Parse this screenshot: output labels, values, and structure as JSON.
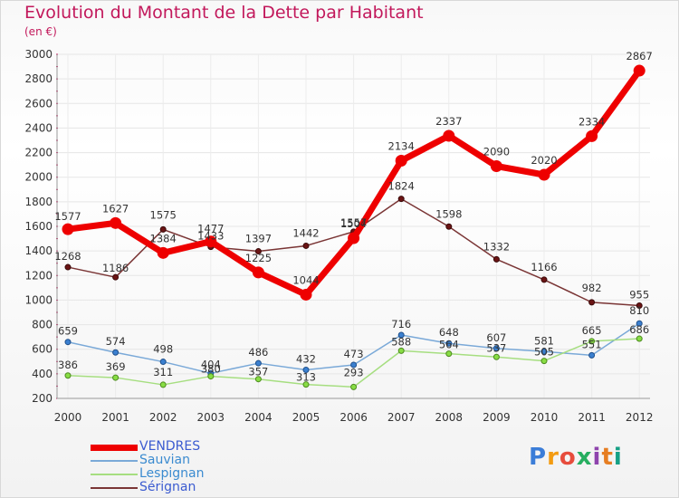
{
  "header": {
    "title": "Evolution du Montant de la Dette par Habitant",
    "subtitle": "(en €)"
  },
  "logo": {
    "text": "Proxiti",
    "colors": [
      "#3b7dd8",
      "#f39c12",
      "#e74c3c",
      "#27ae60",
      "#8e44ad",
      "#e67e22",
      "#16a085"
    ]
  },
  "chart_data": {
    "type": "line",
    "categories": [
      "2000",
      "2001",
      "2002",
      "2003",
      "2004",
      "2005",
      "2006",
      "2007",
      "2008",
      "2009",
      "2010",
      "2011",
      "2012"
    ],
    "ylim": [
      200,
      3000
    ],
    "yticks": [
      200,
      400,
      600,
      800,
      1000,
      1200,
      1400,
      1600,
      1800,
      2000,
      2200,
      2400,
      2600,
      2800,
      3000
    ],
    "grid": true,
    "legend_position": "bottom-left",
    "series": [
      {
        "name": "VENDRES",
        "color": "#ee0000",
        "values": [
          1577,
          1627,
          1384,
          1477,
          1225,
          1044,
          1504,
          2134,
          2337,
          2090,
          2020,
          2334,
          2867
        ]
      },
      {
        "name": "Sauvian",
        "color": "#5b9bd5",
        "values": [
          659,
          574,
          498,
          404,
          486,
          432,
          473,
          716,
          648,
          607,
          581,
          551,
          810
        ]
      },
      {
        "name": "Lespignan",
        "color": "#99dd66",
        "values": [
          386,
          369,
          311,
          380,
          357,
          313,
          293,
          588,
          564,
          537,
          505,
          665,
          686
        ]
      },
      {
        "name": "Sérignan",
        "color": "#7a2a2a",
        "values": [
          1268,
          1186,
          1575,
          1433,
          1397,
          1442,
          1557,
          1824,
          1598,
          1332,
          1166,
          982,
          955
        ]
      }
    ]
  }
}
